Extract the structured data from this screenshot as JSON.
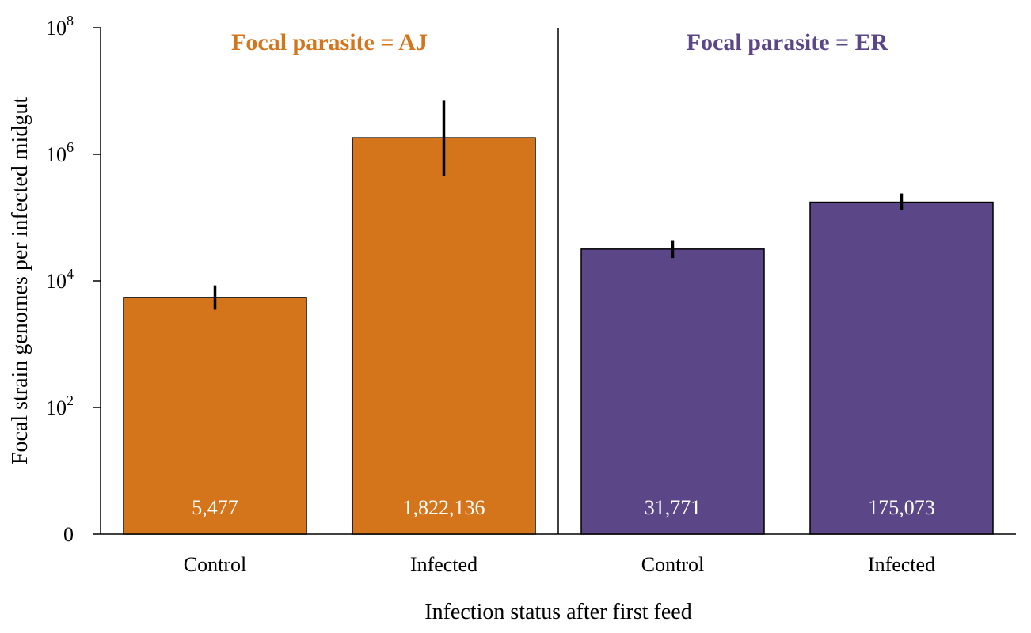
{
  "chart_data": {
    "type": "bar",
    "ylabel": "Focal strain genomes per infected midgut",
    "xlabel": "Infection status after first feed",
    "yscale": "log",
    "ylim": [
      1,
      100000000
    ],
    "yticks": [
      {
        "value": 1,
        "label": "0",
        "exp": ""
      },
      {
        "value": 100,
        "label": "10",
        "exp": "2"
      },
      {
        "value": 10000,
        "label": "10",
        "exp": "4"
      },
      {
        "value": 1000000,
        "label": "10",
        "exp": "6"
      },
      {
        "value": 100000000,
        "label": "10",
        "exp": "8"
      }
    ],
    "panels": [
      {
        "title": "Focal parasite = AJ",
        "color": "#D4741B",
        "categories": [
          "Control",
          "Infected"
        ],
        "values": [
          5477,
          1822136
        ],
        "value_labels": [
          "5,477",
          "1,822,136"
        ],
        "errors_low": [
          3500,
          450000
        ],
        "errors_high": [
          8500,
          7000000
        ]
      },
      {
        "title": "Focal parasite = ER",
        "color": "#5B4787",
        "categories": [
          "Control",
          "Infected"
        ],
        "values": [
          31771,
          175073
        ],
        "value_labels": [
          "31,771",
          "175,073"
        ],
        "errors_low": [
          23000,
          130000
        ],
        "errors_high": [
          44000,
          240000
        ]
      }
    ]
  }
}
